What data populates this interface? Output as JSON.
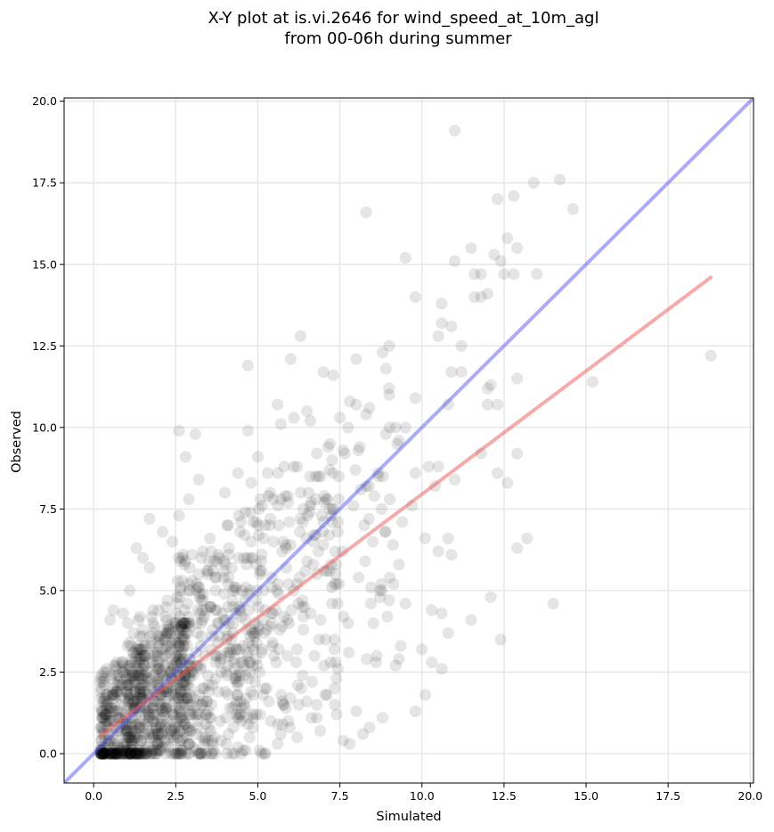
{
  "chart_data": {
    "type": "scatter",
    "title_lines": [
      "X-Y plot at is.vi.2646 for wind_speed_at_10m_agl",
      "from 00-06h during summer"
    ],
    "xlabel": "Simulated",
    "ylabel": "Observed",
    "xlim": [
      -0.9,
      20.1
    ],
    "ylim": [
      -0.9,
      20.1
    ],
    "xticks": [
      0.0,
      2.5,
      5.0,
      7.5,
      10.0,
      12.5,
      15.0,
      17.5,
      20.0
    ],
    "yticks": [
      0.0,
      2.5,
      5.0,
      7.5,
      10.0,
      12.5,
      15.0,
      17.5,
      20.0
    ],
    "x_tick_labels": [
      "0.0",
      "2.5",
      "5.0",
      "7.5",
      "10.0",
      "12.5",
      "15.0",
      "17.5",
      "20.0"
    ],
    "y_tick_labels": [
      "0.0",
      "2.5",
      "5.0",
      "7.5",
      "10.0",
      "12.5",
      "15.0",
      "17.5",
      "20.0"
    ],
    "grid": true,
    "point_color": "#000000",
    "identity_line_color": "#4444ee",
    "regression_line_color": "#ee5555",
    "identity_line": {
      "x": [
        -0.9,
        20.1
      ],
      "y": [
        -0.9,
        20.1
      ]
    },
    "regression_line": {
      "x": [
        0.2,
        18.8
      ],
      "y": [
        0.55,
        14.6
      ]
    },
    "dense_regions": [
      {
        "x": [
          0.2,
          3.0
        ],
        "y": [
          0.0,
          4.0
        ],
        "count": 520
      },
      {
        "x": [
          1.0,
          5.0
        ],
        "y": [
          0.0,
          6.0
        ],
        "count": 360
      },
      {
        "x": [
          2.5,
          7.5
        ],
        "y": [
          0.5,
          8.5
        ],
        "count": 280
      },
      {
        "x": [
          5.0,
          9.5
        ],
        "y": [
          1.0,
          10.0
        ],
        "count": 110
      }
    ],
    "points": [
      [
        11.0,
        19.1
      ],
      [
        14.2,
        17.6
      ],
      [
        13.4,
        17.5
      ],
      [
        12.8,
        17.1
      ],
      [
        12.3,
        17.0
      ],
      [
        8.3,
        16.6
      ],
      [
        14.6,
        16.7
      ],
      [
        12.6,
        15.8
      ],
      [
        12.2,
        15.3
      ],
      [
        9.5,
        15.2
      ],
      [
        12.9,
        15.5
      ],
      [
        11.5,
        15.5
      ],
      [
        11.0,
        15.1
      ],
      [
        12.4,
        15.1
      ],
      [
        11.6,
        14.7
      ],
      [
        12.5,
        14.7
      ],
      [
        12.8,
        14.7
      ],
      [
        13.5,
        14.7
      ],
      [
        11.8,
        14.7
      ],
      [
        12.0,
        14.1
      ],
      [
        11.6,
        14.0
      ],
      [
        11.8,
        14.0
      ],
      [
        9.8,
        14.0
      ],
      [
        10.6,
        13.8
      ],
      [
        10.6,
        13.2
      ],
      [
        10.9,
        13.1
      ],
      [
        10.5,
        12.8
      ],
      [
        6.3,
        12.8
      ],
      [
        9.0,
        12.5
      ],
      [
        11.2,
        12.5
      ],
      [
        8.8,
        12.3
      ],
      [
        8.0,
        12.1
      ],
      [
        6.0,
        12.1
      ],
      [
        4.7,
        11.9
      ],
      [
        8.9,
        11.8
      ],
      [
        7.0,
        11.7
      ],
      [
        10.9,
        11.7
      ],
      [
        11.2,
        11.7
      ],
      [
        7.3,
        11.6
      ],
      [
        12.9,
        11.5
      ],
      [
        15.2,
        11.4
      ],
      [
        12.1,
        11.3
      ],
      [
        12.0,
        11.2
      ],
      [
        9.0,
        11.2
      ],
      [
        9.0,
        11.0
      ],
      [
        9.8,
        10.9
      ],
      [
        18.8,
        12.2
      ],
      [
        12.0,
        10.7
      ],
      [
        12.3,
        10.7
      ],
      [
        10.8,
        10.7
      ],
      [
        5.6,
        10.7
      ],
      [
        8.4,
        10.6
      ],
      [
        6.5,
        10.5
      ],
      [
        7.8,
        10.8
      ],
      [
        8.0,
        10.7
      ],
      [
        7.5,
        10.3
      ],
      [
        6.1,
        10.3
      ],
      [
        5.7,
        10.1
      ],
      [
        6.6,
        10.2
      ],
      [
        8.3,
        10.4
      ],
      [
        9.5,
        10.0
      ],
      [
        8.9,
        9.8
      ],
      [
        4.7,
        9.9
      ],
      [
        2.6,
        9.9
      ],
      [
        3.1,
        9.8
      ],
      [
        12.3,
        8.6
      ],
      [
        12.6,
        8.3
      ],
      [
        12.9,
        9.2
      ],
      [
        11.8,
        9.2
      ],
      [
        10.2,
        8.8
      ],
      [
        10.5,
        8.8
      ],
      [
        10.4,
        8.2
      ],
      [
        11.0,
        8.4
      ],
      [
        9.8,
        8.6
      ],
      [
        10.5,
        6.2
      ],
      [
        10.9,
        6.1
      ],
      [
        10.8,
        6.6
      ],
      [
        10.1,
        6.6
      ],
      [
        9.7,
        7.6
      ],
      [
        9.4,
        7.1
      ],
      [
        9.3,
        5.8
      ],
      [
        9.5,
        4.6
      ],
      [
        9.0,
        4.7
      ],
      [
        12.1,
        4.8
      ],
      [
        13.2,
        6.6
      ],
      [
        12.9,
        6.3
      ],
      [
        12.4,
        3.5
      ],
      [
        14.0,
        4.6
      ],
      [
        11.5,
        4.1
      ],
      [
        10.8,
        3.7
      ],
      [
        10.3,
        4.4
      ],
      [
        10.6,
        4.3
      ],
      [
        10.0,
        3.2
      ],
      [
        10.3,
        2.8
      ],
      [
        10.6,
        2.6
      ],
      [
        9.2,
        2.7
      ],
      [
        9.3,
        2.9
      ],
      [
        10.1,
        1.8
      ],
      [
        9.8,
        1.3
      ],
      [
        8.6,
        2.8
      ],
      [
        8.8,
        1.1
      ],
      [
        8.4,
        0.8
      ],
      [
        8.2,
        0.6
      ],
      [
        7.6,
        0.4
      ],
      [
        7.8,
        0.3
      ],
      [
        8.0,
        1.3
      ],
      [
        7.4,
        1.2
      ],
      [
        6.8,
        1.1
      ],
      [
        5.2,
        0.0
      ],
      [
        3.7,
        0.0
      ],
      [
        4.4,
        0.2
      ],
      [
        4.7,
        0.9
      ],
      [
        5.6,
        0.3
      ],
      [
        6.2,
        0.5
      ],
      [
        6.9,
        0.7
      ],
      [
        0.6,
        4.4
      ],
      [
        0.5,
        4.1
      ],
      [
        0.9,
        4.3
      ],
      [
        1.1,
        5.0
      ],
      [
        1.3,
        6.3
      ],
      [
        1.5,
        6.0
      ],
      [
        1.7,
        5.7
      ],
      [
        1.7,
        7.2
      ],
      [
        2.1,
        6.8
      ],
      [
        2.4,
        6.5
      ],
      [
        2.6,
        7.3
      ],
      [
        2.9,
        7.8
      ],
      [
        3.2,
        8.4
      ],
      [
        2.8,
        9.1
      ],
      [
        4.0,
        8.0
      ],
      [
        4.4,
        8.6
      ],
      [
        4.8,
        8.3
      ],
      [
        5.3,
        8.6
      ],
      [
        5.0,
        9.1
      ],
      [
        5.8,
        8.8
      ],
      [
        6.2,
        8.8
      ],
      [
        6.8,
        9.2
      ],
      [
        7.2,
        9.5
      ],
      [
        7.6,
        9.3
      ],
      [
        8.1,
        9.4
      ]
    ]
  }
}
